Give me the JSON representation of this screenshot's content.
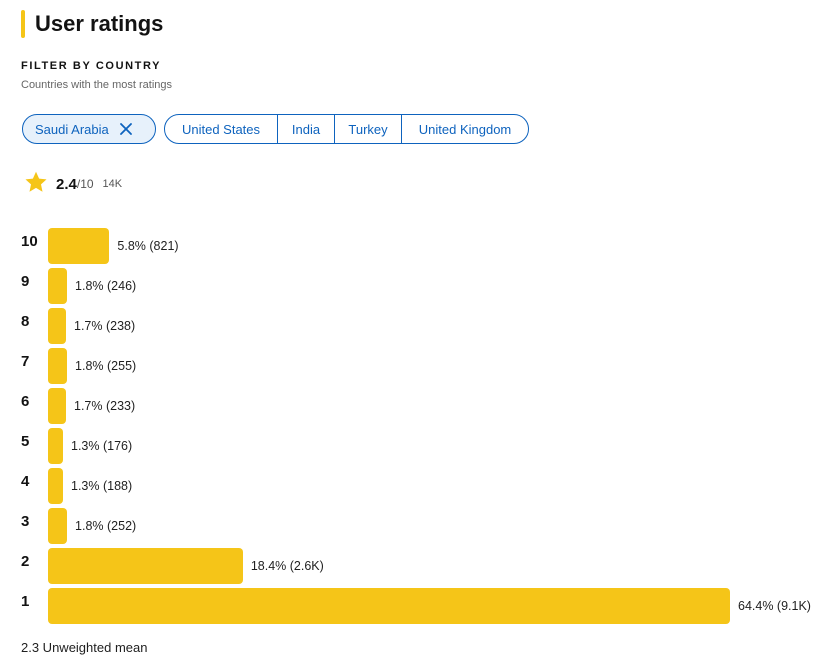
{
  "title": "User ratings",
  "filter": {
    "heading": "FILTER BY COUNTRY",
    "subtitle": "Countries with the most ratings",
    "selected": "Saudi Arabia",
    "options": [
      "United States",
      "India",
      "Turkey",
      "United Kingdom"
    ]
  },
  "rating": {
    "score": "2.4",
    "max": "/10",
    "count": "14K",
    "star_icon": "star-icon",
    "star_color": "#f5c518"
  },
  "chart_data": {
    "type": "bar",
    "orientation": "horizontal",
    "categories": [
      "10",
      "9",
      "8",
      "7",
      "6",
      "5",
      "4",
      "3",
      "2",
      "1"
    ],
    "values": [
      5.8,
      1.8,
      1.7,
      1.8,
      1.7,
      1.3,
      1.3,
      1.8,
      18.4,
      64.4
    ],
    "value_labels": [
      "5.8% (821)",
      "1.8% (246)",
      "1.7% (238)",
      "1.8% (255)",
      "1.7% (233)",
      "1.3% (176)",
      "1.3% (188)",
      "1.8% (252)",
      "18.4% (2.6K)",
      "64.4% (9.1K)"
    ],
    "bar_color": "#f5c518"
  },
  "footer": "2.3 Unweighted mean",
  "colors": {
    "accent": "#f5c518",
    "link": "#0e63be",
    "selected_chip_bg": "#e7f1fb"
  }
}
